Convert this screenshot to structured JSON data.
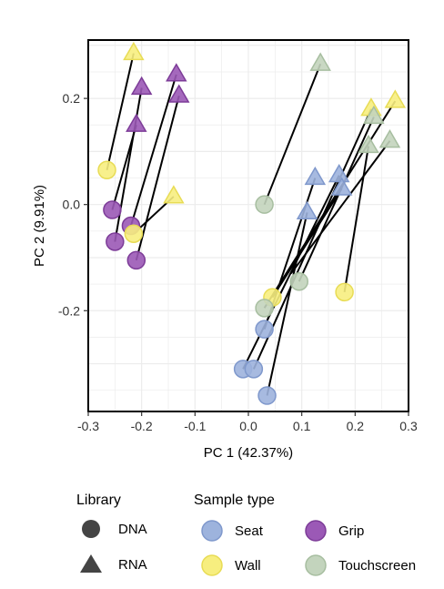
{
  "chart_data": {
    "type": "scatter",
    "title": "",
    "xlabel": "PC 1 (42.37%)",
    "ylabel": "PC 2 (9.91%)",
    "xlim": [
      -0.3,
      0.3
    ],
    "ylim": [
      -0.39,
      0.31
    ],
    "xticks": [
      -0.3,
      -0.2,
      -0.1,
      0.0,
      0.1,
      0.2,
      0.3
    ],
    "xtick_labels": [
      "-0.3",
      "-0.2",
      "-0.1",
      "0.0",
      "0.1",
      "0.2",
      "0.3"
    ],
    "yticks": [
      -0.2,
      0.0,
      0.2
    ],
    "ytick_labels": [
      "-0.2",
      "0.0",
      "0.2"
    ],
    "grid": true,
    "legend_library": {
      "title": "Library",
      "entries": [
        {
          "label": "DNA",
          "shape": "circle"
        },
        {
          "label": "RNA",
          "shape": "triangle"
        }
      ]
    },
    "legend_sample_type": {
      "title": "Sample type",
      "entries": [
        {
          "label": "Seat",
          "color": "#9db3dd",
          "stroke": "#7f98cc"
        },
        {
          "label": "Grip",
          "color": "#9b59b6",
          "stroke": "#7d3c98"
        },
        {
          "label": "Wall",
          "color": "#f7ee7f",
          "stroke": "#e8dc55"
        },
        {
          "label": "Touchscreen",
          "color": "#c3d4bd",
          "stroke": "#a7bea0"
        }
      ]
    },
    "points": [
      {
        "x": -0.215,
        "y": 0.285,
        "shape": "triangle",
        "type": "Wall"
      },
      {
        "x": -0.265,
        "y": 0.065,
        "shape": "circle",
        "type": "Wall"
      },
      {
        "x": -0.135,
        "y": 0.245,
        "shape": "triangle",
        "type": "Grip"
      },
      {
        "x": -0.13,
        "y": 0.205,
        "shape": "triangle",
        "type": "Grip"
      },
      {
        "x": -0.2,
        "y": 0.22,
        "shape": "triangle",
        "type": "Grip"
      },
      {
        "x": -0.21,
        "y": 0.15,
        "shape": "triangle",
        "type": "Grip"
      },
      {
        "x": -0.14,
        "y": 0.015,
        "shape": "triangle",
        "type": "Wall"
      },
      {
        "x": -0.255,
        "y": -0.01,
        "shape": "circle",
        "type": "Grip"
      },
      {
        "x": -0.22,
        "y": -0.04,
        "shape": "circle",
        "type": "Grip"
      },
      {
        "x": -0.215,
        "y": -0.055,
        "shape": "circle",
        "type": "Wall"
      },
      {
        "x": -0.25,
        "y": -0.07,
        "shape": "circle",
        "type": "Grip"
      },
      {
        "x": -0.21,
        "y": -0.105,
        "shape": "circle",
        "type": "Grip"
      },
      {
        "x": 0.135,
        "y": 0.265,
        "shape": "triangle",
        "type": "Touchscreen"
      },
      {
        "x": 0.23,
        "y": 0.18,
        "shape": "triangle",
        "type": "Wall"
      },
      {
        "x": 0.275,
        "y": 0.195,
        "shape": "triangle",
        "type": "Wall"
      },
      {
        "x": 0.235,
        "y": 0.165,
        "shape": "triangle",
        "type": "Touchscreen"
      },
      {
        "x": 0.225,
        "y": 0.11,
        "shape": "triangle",
        "type": "Touchscreen"
      },
      {
        "x": 0.265,
        "y": 0.12,
        "shape": "triangle",
        "type": "Touchscreen"
      },
      {
        "x": 0.125,
        "y": 0.05,
        "shape": "triangle",
        "type": "Seat"
      },
      {
        "x": 0.17,
        "y": 0.055,
        "shape": "triangle",
        "type": "Seat"
      },
      {
        "x": 0.175,
        "y": 0.03,
        "shape": "triangle",
        "type": "Seat"
      },
      {
        "x": 0.11,
        "y": -0.015,
        "shape": "triangle",
        "type": "Seat"
      },
      {
        "x": 0.03,
        "y": 0.0,
        "shape": "circle",
        "type": "Touchscreen"
      },
      {
        "x": 0.095,
        "y": -0.145,
        "shape": "circle",
        "type": "Touchscreen"
      },
      {
        "x": 0.045,
        "y": -0.175,
        "shape": "circle",
        "type": "Wall"
      },
      {
        "x": 0.03,
        "y": -0.195,
        "shape": "circle",
        "type": "Touchscreen"
      },
      {
        "x": 0.18,
        "y": -0.165,
        "shape": "circle",
        "type": "Wall"
      },
      {
        "x": 0.03,
        "y": -0.235,
        "shape": "circle",
        "type": "Seat"
      },
      {
        "x": -0.01,
        "y": -0.31,
        "shape": "circle",
        "type": "Seat"
      },
      {
        "x": 0.01,
        "y": -0.31,
        "shape": "circle",
        "type": "Seat"
      },
      {
        "x": 0.035,
        "y": -0.36,
        "shape": "circle",
        "type": "Seat"
      }
    ],
    "segments": [
      {
        "x1": -0.265,
        "y1": 0.065,
        "x2": -0.215,
        "y2": 0.285
      },
      {
        "x1": -0.255,
        "y1": -0.01,
        "x2": -0.21,
        "y2": 0.15
      },
      {
        "x1": -0.25,
        "y1": -0.07,
        "x2": -0.2,
        "y2": 0.22
      },
      {
        "x1": -0.22,
        "y1": -0.04,
        "x2": -0.135,
        "y2": 0.245
      },
      {
        "x1": -0.21,
        "y1": -0.105,
        "x2": -0.13,
        "y2": 0.205
      },
      {
        "x1": -0.215,
        "y1": -0.055,
        "x2": -0.14,
        "y2": 0.015
      },
      {
        "x1": 0.03,
        "y1": 0.0,
        "x2": 0.135,
        "y2": 0.265
      },
      {
        "x1": 0.03,
        "y1": -0.235,
        "x2": 0.125,
        "y2": 0.05
      },
      {
        "x1": -0.01,
        "y1": -0.31,
        "x2": 0.17,
        "y2": 0.055
      },
      {
        "x1": 0.01,
        "y1": -0.31,
        "x2": 0.23,
        "y2": 0.18
      },
      {
        "x1": 0.035,
        "y1": -0.36,
        "x2": 0.11,
        "y2": -0.015
      },
      {
        "x1": 0.045,
        "y1": -0.175,
        "x2": 0.175,
        "y2": 0.03
      },
      {
        "x1": 0.095,
        "y1": -0.145,
        "x2": 0.235,
        "y2": 0.165
      },
      {
        "x1": 0.08,
        "y1": -0.13,
        "x2": 0.265,
        "y2": 0.12
      },
      {
        "x1": 0.18,
        "y1": -0.165,
        "x2": 0.225,
        "y2": 0.11
      },
      {
        "x1": 0.03,
        "y1": -0.195,
        "x2": 0.275,
        "y2": 0.195
      }
    ]
  }
}
